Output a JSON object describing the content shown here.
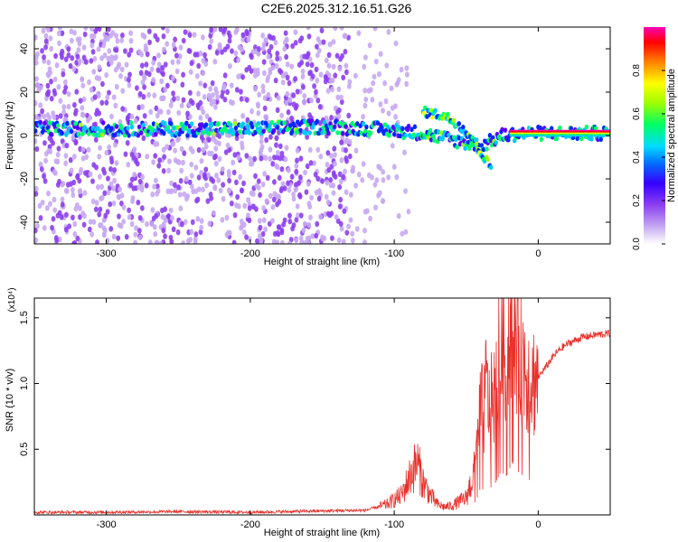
{
  "title": "C2E6.2025.312.16.51.G26",
  "colors": {
    "line": "#e8302a",
    "axis": "#000000",
    "cmap": [
      "#ffffff",
      "#c6a9f2",
      "#8c3ff0",
      "#5a00ff",
      "#0028ff",
      "#00c8ff",
      "#00ff64",
      "#a0ff00",
      "#ffff00",
      "#ff8000",
      "#ff0000",
      "#ff00a0"
    ]
  },
  "chart_data": [
    {
      "type": "heatmap",
      "title": "C2E6.2025.312.16.51.G26",
      "xlabel": "Height of straight line (km)",
      "ylabel": "Frequency (Hz)",
      "xlim": [
        -350,
        50
      ],
      "ylim": [
        -50,
        50
      ],
      "xticks": [
        -300,
        -200,
        -100,
        0
      ],
      "yticks": [
        -40,
        -20,
        0,
        20,
        40
      ],
      "colorbar": {
        "label": "Normalized spectral amplitude",
        "range": [
          0,
          1
        ],
        "ticks": [
          0.0,
          0.2,
          0.4,
          0.6,
          0.8
        ]
      },
      "features": [
        {
          "name": "noise-field",
          "x_range": [
            -350,
            -130
          ],
          "y_range": [
            -50,
            50
          ],
          "amplitude": 0.15
        },
        {
          "name": "main-trace",
          "points": [
            [
              -350,
              3
            ],
            [
              -300,
              3
            ],
            [
              -250,
              3
            ],
            [
              -200,
              3
            ],
            [
              -150,
              4
            ],
            [
              -110,
              3
            ],
            [
              -80,
              1
            ],
            [
              -60,
              -2
            ],
            [
              -40,
              -5
            ],
            [
              -25,
              0
            ],
            [
              -10,
              1
            ],
            [
              0,
              1
            ],
            [
              50,
              1
            ]
          ]
        },
        {
          "name": "upper-branch",
          "points": [
            [
              -80,
              11
            ],
            [
              -65,
              9
            ],
            [
              -55,
              5
            ],
            [
              -45,
              -2
            ],
            [
              -38,
              -10
            ],
            [
              -32,
              -15
            ]
          ]
        },
        {
          "name": "carrier-line",
          "x_range": [
            -20,
            50
          ],
          "frequency": 1,
          "amplitude": 0.95
        }
      ]
    },
    {
      "type": "line",
      "title": "",
      "xlabel": "Height of straight line (km)",
      "ylabel": "SNR (10 * v/v)",
      "scale_label": "(x10⁴)",
      "xlim": [
        -350,
        50
      ],
      "ylim": [
        0,
        1.65
      ],
      "xticks": [
        -300,
        -200,
        -100,
        0
      ],
      "yticks": [
        0.5,
        1.0,
        1.5
      ],
      "ytick_labels": [
        "0.5",
        "1.0",
        "1.5"
      ],
      "series": [
        {
          "name": "SNR",
          "x": [
            -350,
            -300,
            -250,
            -200,
            -150,
            -120,
            -105,
            -95,
            -88,
            -84,
            -80,
            -75,
            -70,
            -65,
            -60,
            -55,
            -50,
            -45,
            -42,
            -40,
            -38,
            -36,
            -34,
            -30,
            -26,
            -22,
            -18,
            -15,
            -12,
            -8,
            -4,
            0,
            5,
            10,
            15,
            20,
            30,
            40,
            50
          ],
          "y": [
            0.02,
            0.02,
            0.025,
            0.02,
            0.03,
            0.035,
            0.08,
            0.15,
            0.32,
            0.4,
            0.25,
            0.15,
            0.08,
            0.06,
            0.07,
            0.1,
            0.13,
            0.3,
            0.55,
            0.85,
            0.75,
            1.02,
            0.8,
            0.95,
            1.3,
            1.2,
            1.6,
            1.35,
            1.25,
            1.1,
            1.02,
            1.05,
            1.12,
            1.2,
            1.26,
            1.3,
            1.35,
            1.37,
            1.38
          ]
        }
      ]
    }
  ]
}
